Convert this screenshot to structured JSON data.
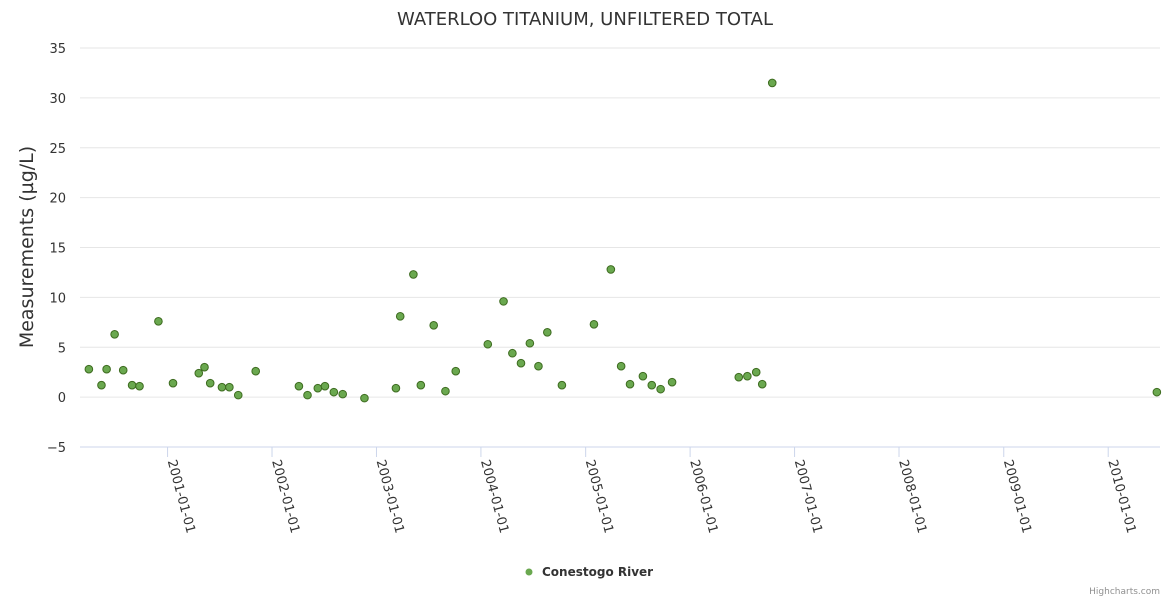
{
  "chart_data": {
    "type": "scatter",
    "title": "WATERLOO TITANIUM, UNFILTERED TOTAL",
    "xlabel": "",
    "ylabel": "Measurements (µg/L)",
    "ylim": [
      -5,
      35
    ],
    "yticks": [
      -5,
      0,
      5,
      10,
      15,
      20,
      25,
      30,
      35
    ],
    "xticks": [
      "2001-01-01",
      "2002-01-01",
      "2003-01-01",
      "2004-01-01",
      "2005-01-01",
      "2006-01-01",
      "2007-01-01",
      "2008-01-01",
      "2009-01-01",
      "2010-01-01"
    ],
    "xlim": [
      "2000-03-01",
      "2010-07-01"
    ],
    "grid": "horizontal",
    "legend_position": "bottom-center",
    "color": "#6aa84f",
    "series": [
      {
        "name": "Conestogo River",
        "points": [
          [
            "2000-04-01",
            2.8
          ],
          [
            "2000-05-15",
            1.2
          ],
          [
            "2000-06-02",
            2.8
          ],
          [
            "2000-06-30",
            6.3
          ],
          [
            "2000-07-30",
            2.7
          ],
          [
            "2000-08-30",
            1.2
          ],
          [
            "2000-09-25",
            1.1
          ],
          [
            "2000-11-30",
            7.6
          ],
          [
            "2001-01-20",
            1.4
          ],
          [
            "2001-04-20",
            2.4
          ],
          [
            "2001-05-10",
            3.0
          ],
          [
            "2001-05-30",
            1.4
          ],
          [
            "2001-07-10",
            1.0
          ],
          [
            "2001-08-05",
            1.0
          ],
          [
            "2001-09-05",
            0.2
          ],
          [
            "2001-11-05",
            2.6
          ],
          [
            "2002-04-05",
            1.1
          ],
          [
            "2002-05-05",
            0.2
          ],
          [
            "2002-06-10",
            0.9
          ],
          [
            "2002-07-05",
            1.1
          ],
          [
            "2002-08-05",
            0.5
          ],
          [
            "2002-09-05",
            0.3
          ],
          [
            "2002-11-20",
            -0.1
          ],
          [
            "2003-03-10",
            0.9
          ],
          [
            "2003-03-25",
            8.1
          ],
          [
            "2003-05-10",
            12.3
          ],
          [
            "2003-06-05",
            1.2
          ],
          [
            "2003-07-20",
            7.2
          ],
          [
            "2003-08-30",
            0.6
          ],
          [
            "2003-10-05",
            2.6
          ],
          [
            "2004-01-25",
            5.3
          ],
          [
            "2004-03-20",
            9.6
          ],
          [
            "2004-04-20",
            4.4
          ],
          [
            "2004-05-20",
            3.4
          ],
          [
            "2004-06-20",
            5.4
          ],
          [
            "2004-07-20",
            3.1
          ],
          [
            "2004-08-20",
            6.5
          ],
          [
            "2004-10-10",
            1.2
          ],
          [
            "2005-01-30",
            7.3
          ],
          [
            "2005-03-30",
            12.8
          ],
          [
            "2005-05-05",
            3.1
          ],
          [
            "2005-06-05",
            1.3
          ],
          [
            "2005-07-20",
            2.1
          ],
          [
            "2005-08-20",
            1.2
          ],
          [
            "2005-09-20",
            0.8
          ],
          [
            "2005-10-30",
            1.5
          ],
          [
            "2006-06-20",
            2.0
          ],
          [
            "2006-07-20",
            2.1
          ],
          [
            "2006-08-20",
            2.5
          ],
          [
            "2006-09-10",
            1.3
          ],
          [
            "2006-10-15",
            31.5
          ],
          [
            "2010-06-20",
            0.5
          ]
        ]
      }
    ],
    "credits": "Highcharts.com"
  }
}
